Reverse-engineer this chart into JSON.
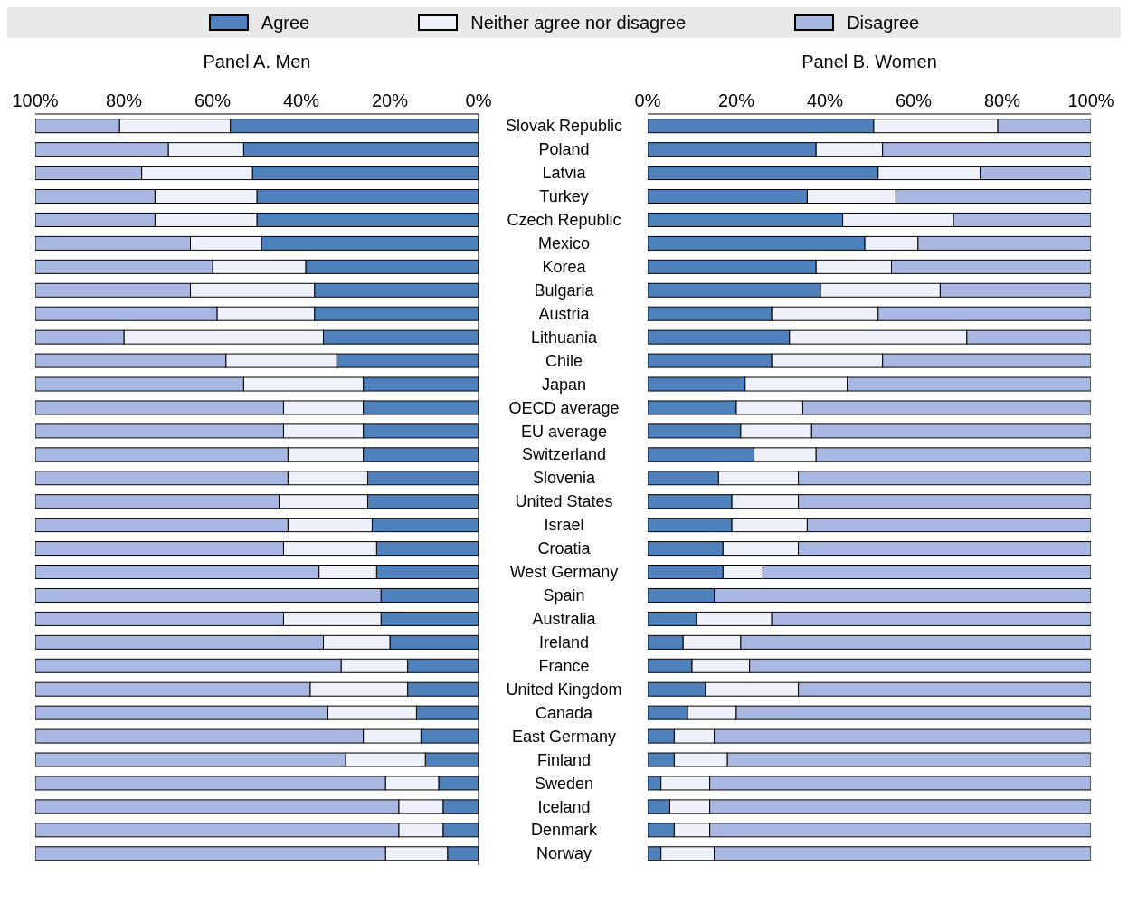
{
  "chart_data": [
    {
      "type": "bar",
      "orientation": "horizontal",
      "stacked": true,
      "title": "Panel A. Men",
      "legend": "top",
      "categories": [
        "Slovak Republic",
        "Poland",
        "Latvia",
        "Turkey",
        "Czech Republic",
        "Mexico",
        "Korea",
        "Bulgaria",
        "Austria",
        "Lithuania",
        "Chile",
        "Japan",
        "OECD average",
        "EU average",
        "Switzerland",
        "Slovenia",
        "United States",
        "Israel",
        "Croatia",
        "West Germany",
        "Spain",
        "Australia",
        "Ireland",
        "France",
        "United Kingdom",
        "Canada",
        "East Germany",
        "Finland",
        "Sweden",
        "Iceland",
        "Denmark",
        "Norway"
      ],
      "xlim": [
        100,
        0
      ],
      "xticks": [
        {
          "value": 100,
          "label": "100%"
        },
        {
          "value": 80,
          "label": "80%"
        },
        {
          "value": 60,
          "label": "60%"
        },
        {
          "value": 40,
          "label": "40%"
        },
        {
          "value": 20,
          "label": "20%"
        },
        {
          "value": 0,
          "label": "0%"
        }
      ],
      "series": [
        {
          "name": "Agree",
          "color": "#4f81bd",
          "values": [
            56,
            53,
            51,
            50,
            50,
            49,
            39,
            37,
            37,
            35,
            32,
            26,
            26,
            26,
            26,
            25,
            25,
            24,
            23,
            23,
            22,
            22,
            20,
            16,
            16,
            14,
            13,
            12,
            9,
            8,
            8,
            7
          ]
        },
        {
          "name": "Neither agree nor disagree",
          "color": "#eef1f9",
          "values": [
            25,
            17,
            25,
            23,
            23,
            16,
            21,
            28,
            22,
            45,
            25,
            27,
            18,
            18,
            17,
            18,
            20,
            19,
            21,
            13,
            0,
            22,
            15,
            15,
            22,
            20,
            13,
            18,
            12,
            10,
            10,
            14
          ]
        },
        {
          "name": "Disagree",
          "color": "#a9b7e3",
          "values": [
            19,
            30,
            24,
            27,
            27,
            35,
            40,
            35,
            41,
            20,
            43,
            47,
            56,
            56,
            57,
            57,
            55,
            57,
            56,
            64,
            78,
            56,
            65,
            69,
            62,
            66,
            74,
            70,
            79,
            82,
            82,
            79
          ]
        }
      ]
    },
    {
      "type": "bar",
      "orientation": "horizontal",
      "stacked": true,
      "title": "Panel B. Women",
      "categories": [
        null,
        null,
        null,
        null,
        null,
        null,
        null,
        null,
        null,
        null,
        null,
        null,
        null,
        null,
        null,
        null,
        null,
        null,
        null,
        null,
        null,
        null,
        null,
        null,
        null,
        null,
        null,
        null,
        null,
        null,
        null,
        null
      ],
      "xlim": [
        0,
        100
      ],
      "xticks": [
        {
          "value": 0,
          "label": "0%"
        },
        {
          "value": 20,
          "label": "20%"
        },
        {
          "value": 40,
          "label": "40%"
        },
        {
          "value": 60,
          "label": "60%"
        },
        {
          "value": 80,
          "label": "80%"
        },
        {
          "value": 100,
          "label": "100%"
        }
      ],
      "series": [
        {
          "color": "#4f81bd",
          "values": [
            51,
            38,
            52,
            36,
            44,
            49,
            38,
            39,
            28,
            32,
            28,
            22,
            20,
            21,
            24,
            16,
            19,
            19,
            17,
            17,
            15,
            11,
            8,
            10,
            13,
            9,
            6,
            6,
            3,
            5,
            6,
            3
          ]
        },
        {
          "color": "#eef1f9",
          "values": [
            28,
            15,
            23,
            20,
            25,
            12,
            17,
            27,
            24,
            40,
            25,
            23,
            15,
            16,
            14,
            18,
            15,
            17,
            17,
            9,
            0,
            17,
            13,
            13,
            21,
            11,
            9,
            12,
            11,
            9,
            8,
            12
          ]
        },
        {
          "color": "#a9b7e3",
          "values": [
            21,
            47,
            25,
            44,
            31,
            39,
            45,
            34,
            48,
            28,
            47,
            55,
            65,
            63,
            62,
            66,
            66,
            64,
            66,
            74,
            85,
            72,
            79,
            77,
            66,
            80,
            85,
            82,
            86,
            86,
            86,
            85
          ]
        }
      ]
    }
  ]
}
